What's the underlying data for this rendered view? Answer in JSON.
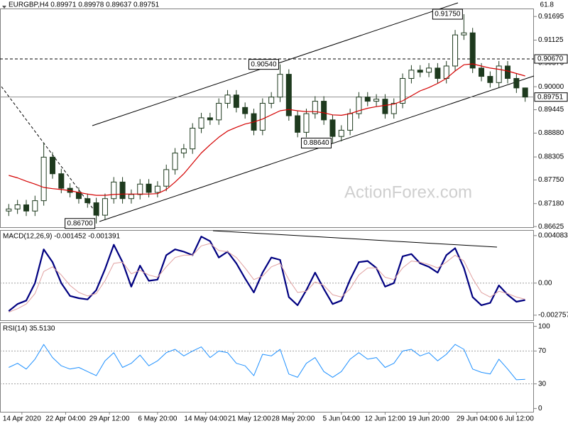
{
  "chart_data": [
    {
      "type": "candlestick",
      "title": "EURGBP,H4 0.89971 0.89978 0.89637 0.89751",
      "fib_label": "61.8",
      "watermark": "ActionForex.com",
      "color": "#1e3a1e",
      "xlim": [
        -1,
        60
      ],
      "ylim": [
        0.8661,
        0.9187
      ],
      "grid": "none",
      "yticks": [
        {
          "value": 0.91695,
          "label": "0.91695"
        },
        {
          "value": 0.91125,
          "label": "0.91125"
        },
        {
          "value": 0.9057,
          "label": "0.90570"
        },
        {
          "value": 0.9,
          "label": "0.90000"
        },
        {
          "value": 0.89445,
          "label": "0.89445"
        },
        {
          "value": 0.8888,
          "label": "0.88880"
        },
        {
          "value": 0.88305,
          "label": "0.88305"
        },
        {
          "value": 0.8775,
          "label": "0.87750"
        },
        {
          "value": 0.8718,
          "label": "0.87180"
        },
        {
          "value": 0.86625,
          "label": "0.86625"
        }
      ],
      "open": [
        0.87,
        0.8705,
        0.8715,
        0.87,
        0.8725,
        0.883,
        0.879,
        0.8755,
        0.8745,
        0.873,
        0.872,
        0.869,
        0.873,
        0.877,
        0.873,
        0.874,
        0.8765,
        0.8745,
        0.876,
        0.88,
        0.884,
        0.885,
        0.89,
        0.8925,
        0.892,
        0.896,
        0.898,
        0.895,
        0.8935,
        0.8895,
        0.896,
        0.8975,
        0.903,
        0.893,
        0.889,
        0.8935,
        0.8965,
        0.892,
        0.888,
        0.8895,
        0.8935,
        0.8975,
        0.8965,
        0.897,
        0.8935,
        0.896,
        0.902,
        0.904,
        0.9035,
        0.9045,
        0.902,
        0.905,
        0.9125,
        0.913,
        0.9045,
        0.9025,
        0.901,
        0.905,
        0.902,
        0.89971
      ],
      "high": [
        0.8717,
        0.8727,
        0.8727,
        0.8737,
        0.8865,
        0.8842,
        0.8802,
        0.8767,
        0.8757,
        0.8742,
        0.8732,
        0.8742,
        0.8782,
        0.8782,
        0.8752,
        0.8777,
        0.8777,
        0.8772,
        0.8812,
        0.8852,
        0.8862,
        0.8912,
        0.8937,
        0.8937,
        0.8972,
        0.8992,
        0.8992,
        0.8962,
        0.8947,
        0.8972,
        0.8987,
        0.9054,
        0.9042,
        0.8942,
        0.8947,
        0.8977,
        0.8977,
        0.8932,
        0.8907,
        0.8947,
        0.8987,
        0.8987,
        0.8982,
        0.8982,
        0.8972,
        0.9032,
        0.9052,
        0.9052,
        0.9057,
        0.9057,
        0.9062,
        0.9137,
        0.9175,
        0.9142,
        0.9057,
        0.9037,
        0.9062,
        0.9062,
        0.9032,
        0.89978
      ],
      "low": [
        0.8688,
        0.8693,
        0.8688,
        0.8688,
        0.8713,
        0.8778,
        0.8743,
        0.8733,
        0.8718,
        0.8708,
        0.867,
        0.8678,
        0.8718,
        0.8718,
        0.8718,
        0.8728,
        0.8733,
        0.8733,
        0.8748,
        0.8788,
        0.8828,
        0.8838,
        0.8888,
        0.8908,
        0.8908,
        0.8948,
        0.8938,
        0.8923,
        0.8883,
        0.8883,
        0.8948,
        0.8963,
        0.8918,
        0.8878,
        0.8878,
        0.8923,
        0.8908,
        0.8864,
        0.8868,
        0.8883,
        0.8923,
        0.8953,
        0.8953,
        0.8923,
        0.8923,
        0.8948,
        0.9008,
        0.9023,
        0.9023,
        0.9008,
        0.9008,
        0.9038,
        0.9113,
        0.9033,
        0.9013,
        0.8998,
        0.8998,
        0.9008,
        0.8985,
        0.89637
      ],
      "close": [
        0.8705,
        0.8715,
        0.87,
        0.8725,
        0.883,
        0.879,
        0.8755,
        0.8745,
        0.873,
        0.872,
        0.869,
        0.873,
        0.877,
        0.873,
        0.874,
        0.8765,
        0.8745,
        0.876,
        0.88,
        0.884,
        0.885,
        0.89,
        0.8925,
        0.892,
        0.896,
        0.898,
        0.895,
        0.8935,
        0.8895,
        0.896,
        0.8975,
        0.903,
        0.893,
        0.889,
        0.8935,
        0.8965,
        0.892,
        0.888,
        0.8895,
        0.8935,
        0.8975,
        0.8965,
        0.897,
        0.8935,
        0.896,
        0.902,
        0.904,
        0.9035,
        0.9045,
        0.902,
        0.905,
        0.9125,
        0.913,
        0.9045,
        0.9025,
        0.901,
        0.905,
        0.902,
        0.89971,
        0.89751
      ],
      "series": [
        {
          "color": "#d40000",
          "values": [
            0.8786,
            0.878,
            0.8772,
            0.8765,
            0.8757,
            0.8754,
            0.8752,
            0.8749,
            0.8745,
            0.8741,
            0.8738,
            0.8738,
            0.874,
            0.8741,
            0.8741,
            0.8741,
            0.8741,
            0.8742,
            0.8752,
            0.877,
            0.879,
            0.8815,
            0.884,
            0.886,
            0.8878,
            0.8893,
            0.8902,
            0.891,
            0.8915,
            0.8922,
            0.8932,
            0.8942,
            0.8945,
            0.8942,
            0.894,
            0.894,
            0.8937,
            0.8932,
            0.8931,
            0.8935,
            0.8942,
            0.8948,
            0.8952,
            0.8955,
            0.8958,
            0.8966,
            0.8978,
            0.899,
            0.8998,
            0.9008,
            0.902,
            0.9038,
            0.9053,
            0.9055,
            0.905,
            0.9045,
            0.9042,
            0.9038,
            0.9032,
            0.9026
          ]
        }
      ],
      "levels": [
        {
          "value": 0.9067,
          "label": "0.90670",
          "style": "dashed"
        },
        {
          "value": 0.89751,
          "label": "0.89751",
          "style": "solid"
        }
      ],
      "annotations": [
        {
          "x": 10,
          "value": 0.867,
          "label": "0.86700"
        },
        {
          "x": 31,
          "value": 0.9054,
          "label": "0.90540"
        },
        {
          "x": 37,
          "value": 0.8864,
          "label": "0.88640"
        },
        {
          "x": 52,
          "value": 0.9175,
          "label": "0.91750"
        }
      ]
    },
    {
      "type": "line",
      "title": "MACD(12,26,9) -0.001452 -0.001391",
      "xlim": [
        -1,
        60
      ],
      "ylim": [
        -0.00325,
        0.0045
      ],
      "grid": "inner",
      "yticks": [
        0.004083,
        {
          "value": 0,
          "label": "0.00"
        },
        -0.002757
      ],
      "series": [
        {
          "color": "#000080",
          "width": 2.2,
          "values": [
            -0.0024,
            -0.0018,
            -0.0015,
            0.0,
            0.0029,
            0.0018,
            0.0,
            -0.0011,
            -0.0013,
            -0.0014,
            -0.0006,
            0.0012,
            0.0033,
            0.0018,
            -0.0003,
            0.0015,
            0.0002,
            0.0003,
            0.0024,
            0.0029,
            0.0027,
            0.0024,
            0.004,
            0.0036,
            0.0022,
            0.0027,
            0.0017,
            0.0004,
            -0.0008,
            0.0009,
            0.0022,
            0.002,
            -0.0012,
            -0.0019,
            -0.0006,
            0.0009,
            -0.0005,
            -0.0018,
            -0.0015,
            0.0003,
            0.0018,
            0.0019,
            0.0013,
            -0.0003,
            0.0,
            0.0023,
            0.0025,
            0.0017,
            0.0014,
            0.0009,
            0.0024,
            0.003,
            0.0013,
            -0.0012,
            -0.0019,
            -0.0017,
            -0.0002,
            -0.001,
            -0.0016,
            -0.001452
          ]
        },
        {
          "color": "#e0a0a0",
          "width": 1,
          "values": [
            -0.0025,
            -0.0022,
            -0.0018,
            -0.0009,
            0.001,
            0.0014,
            0.0007,
            -0.0002,
            -0.0008,
            -0.0011,
            -0.0009,
            0.0002,
            0.0017,
            0.0018,
            0.0008,
            0.0011,
            0.0007,
            0.0005,
            0.0014,
            0.0022,
            0.0024,
            0.0024,
            0.0032,
            0.0034,
            0.0028,
            0.0027,
            0.0022,
            0.0013,
            0.0003,
            0.0006,
            0.0014,
            0.0017,
            0.0003,
            -0.0008,
            -0.0007,
            0.0001,
            -0.0002,
            -0.001,
            -0.0012,
            -0.0005,
            0.0007,
            0.0013,
            0.0013,
            0.0005,
            0.0003,
            0.0013,
            0.0019,
            0.0018,
            0.0016,
            0.0013,
            0.0018,
            0.0024,
            0.0019,
            0.0004,
            -0.0008,
            -0.0012,
            -0.0007,
            -0.0009,
            -0.0012,
            -0.001391
          ]
        }
      ]
    },
    {
      "type": "line",
      "title": "RSI(14) 35.5130",
      "xlim": [
        -1,
        60
      ],
      "ylim": [
        -4,
        104
      ],
      "grid": "inner",
      "yticks": [
        100,
        70,
        30,
        0
      ],
      "series": [
        {
          "color": "#1e90ff",
          "width": 1,
          "values": [
            50,
            55,
            48,
            60,
            78,
            62,
            52,
            48,
            50,
            45,
            40,
            58,
            68,
            50,
            55,
            65,
            52,
            58,
            68,
            72,
            64,
            70,
            75,
            62,
            70,
            68,
            55,
            52,
            40,
            66,
            64,
            72,
            42,
            38,
            55,
            62,
            45,
            38,
            45,
            60,
            68,
            60,
            62,
            50,
            55,
            70,
            72,
            64,
            68,
            58,
            66,
            78,
            72,
            48,
            44,
            42,
            60,
            48,
            35,
            35.513
          ]
        }
      ],
      "xticks": [
        {
          "value": 1.5,
          "label": "14 Apr 2020"
        },
        {
          "value": 6.5,
          "label": "22 Apr 04:00"
        },
        {
          "value": 11.5,
          "label": "29 Apr 12:00"
        },
        {
          "value": 17,
          "label": "6 May 20:00"
        },
        {
          "value": 22.5,
          "label": "14 May 04:00"
        },
        {
          "value": 27.5,
          "label": "21 May 12:00"
        },
        {
          "value": 32.5,
          "label": "28 May 20:00"
        },
        {
          "value": 38,
          "label": "5 Jun 04:00"
        },
        {
          "value": 43,
          "label": "12 Jun 12:00"
        },
        {
          "value": 48,
          "label": "19 Jun 20:00"
        },
        {
          "value": 53.5,
          "label": "29 Jun 04:00"
        },
        {
          "value": 58,
          "label": "6 Jul 12:00"
        }
      ]
    }
  ]
}
